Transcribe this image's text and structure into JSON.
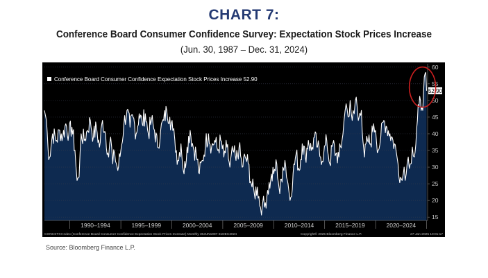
{
  "header": {
    "chart_label": "CHART 7:",
    "title": "Conference Board Consumer Confidence Survey: Expectation Stock Prices Increase",
    "subtitle": "(Jun. 30, 1987 – Dec. 31, 2024)"
  },
  "footer": {
    "source": "Source: Bloomberg Finance L.P."
  },
  "chart_data": {
    "type": "area",
    "legend_label": "Conference Board Consumer Confidence Expectation Stock Prices Increase",
    "last_value_label": "52.90",
    "legend_position": "top-left",
    "y_axis_side": "right",
    "ylim": [
      14,
      61
    ],
    "yticks": [
      15,
      20,
      25,
      30,
      35,
      40,
      45,
      50,
      55,
      60
    ],
    "xlim": [
      1987.5,
      2025.1
    ],
    "x_tick_labels": [
      {
        "label": "1990–1994",
        "center": 1992.5
      },
      {
        "label": "1995–1999",
        "center": 1997.5
      },
      {
        "label": "2000–2004",
        "center": 2002.5
      },
      {
        "label": "2005–2009",
        "center": 2007.5
      },
      {
        "label": "2010–2014",
        "center": 2012.5
      },
      {
        "label": "2015–2019",
        "center": 2017.5
      },
      {
        "label": "2020–2024",
        "center": 2022.5
      }
    ],
    "x_separators": [
      1990,
      1995,
      2000,
      2005,
      2010,
      2015,
      2020,
      2025
    ],
    "footer_left": "CONCSTXI Index (Conference Board Consumer Confidence Expectation Stock Prices Increase) Monthly 30JUN1987-31DEC2024",
    "footer_right": "Copyright© 2025 Bloomberg Finance L.P.",
    "footer_timestamp": "27-Jan-2025 10:01:17",
    "highlight": {
      "description": "red circle",
      "center_x": 2024.6,
      "center_y": 54,
      "color": "#cc1f1f"
    },
    "series_color": "#ffffff",
    "fill_color": "#0e2a50",
    "anchors": [
      [
        1987.5,
        47
      ],
      [
        1987.7,
        44
      ],
      [
        1987.85,
        36
      ],
      [
        1988.0,
        33
      ],
      [
        1988.3,
        40
      ],
      [
        1988.7,
        38
      ],
      [
        1989.0,
        41
      ],
      [
        1989.3,
        39
      ],
      [
        1989.6,
        43
      ],
      [
        1989.9,
        40
      ],
      [
        1990.2,
        42
      ],
      [
        1990.5,
        35
      ],
      [
        1990.7,
        26
      ],
      [
        1990.9,
        27
      ],
      [
        1991.1,
        40
      ],
      [
        1991.4,
        38
      ],
      [
        1991.7,
        41
      ],
      [
        1992.0,
        44
      ],
      [
        1992.3,
        39
      ],
      [
        1992.6,
        42
      ],
      [
        1992.9,
        36
      ],
      [
        1993.2,
        44
      ],
      [
        1993.5,
        40
      ],
      [
        1993.8,
        33
      ],
      [
        1994.0,
        39
      ],
      [
        1994.2,
        31
      ],
      [
        1994.4,
        34
      ],
      [
        1994.7,
        29
      ],
      [
        1995.0,
        35
      ],
      [
        1995.3,
        43
      ],
      [
        1995.6,
        47
      ],
      [
        1995.9,
        42
      ],
      [
        1996.2,
        45
      ],
      [
        1996.5,
        40
      ],
      [
        1996.8,
        46
      ],
      [
        1997.1,
        43
      ],
      [
        1997.4,
        46
      ],
      [
        1997.7,
        40
      ],
      [
        1998.0,
        44
      ],
      [
        1998.3,
        41
      ],
      [
        1998.6,
        36
      ],
      [
        1998.9,
        41
      ],
      [
        1999.2,
        44
      ],
      [
        1999.5,
        47
      ],
      [
        1999.8,
        45
      ],
      [
        2000.1,
        41
      ],
      [
        2000.3,
        38
      ],
      [
        2000.6,
        32
      ],
      [
        2000.9,
        37
      ],
      [
        2001.2,
        28
      ],
      [
        2001.5,
        36
      ],
      [
        2001.8,
        41
      ],
      [
        2002.1,
        36
      ],
      [
        2002.4,
        34
      ],
      [
        2002.7,
        28
      ],
      [
        2003.0,
        32
      ],
      [
        2003.3,
        37
      ],
      [
        2003.6,
        40
      ],
      [
        2003.9,
        36
      ],
      [
        2004.2,
        38
      ],
      [
        2004.5,
        35
      ],
      [
        2004.8,
        38
      ],
      [
        2005.1,
        33
      ],
      [
        2005.4,
        36
      ],
      [
        2005.7,
        30
      ],
      [
        2006.0,
        35
      ],
      [
        2006.3,
        32
      ],
      [
        2006.6,
        36
      ],
      [
        2006.9,
        30
      ],
      [
        2007.2,
        33
      ],
      [
        2007.5,
        31
      ],
      [
        2007.8,
        25
      ],
      [
        2008.1,
        22
      ],
      [
        2008.4,
        24
      ],
      [
        2008.7,
        18
      ],
      [
        2008.9,
        19
      ],
      [
        2009.1,
        18
      ],
      [
        2009.4,
        23
      ],
      [
        2009.7,
        26
      ],
      [
        2010.0,
        28
      ],
      [
        2010.3,
        31
      ],
      [
        2010.6,
        22
      ],
      [
        2010.9,
        30
      ],
      [
        2011.1,
        32
      ],
      [
        2011.4,
        25
      ],
      [
        2011.6,
        20
      ],
      [
        2011.9,
        28
      ],
      [
        2012.2,
        34
      ],
      [
        2012.5,
        29
      ],
      [
        2012.8,
        37
      ],
      [
        2013.1,
        33
      ],
      [
        2013.4,
        38
      ],
      [
        2013.7,
        35
      ],
      [
        2014.0,
        39
      ],
      [
        2014.3,
        36
      ],
      [
        2014.6,
        33
      ],
      [
        2014.9,
        34
      ],
      [
        2015.2,
        38
      ],
      [
        2015.5,
        31
      ],
      [
        2015.8,
        37
      ],
      [
        2016.1,
        34
      ],
      [
        2016.4,
        33
      ],
      [
        2016.7,
        38
      ],
      [
        2016.9,
        44
      ],
      [
        2017.1,
        49
      ],
      [
        2017.3,
        45
      ],
      [
        2017.5,
        50
      ],
      [
        2017.7,
        44
      ],
      [
        2017.9,
        46
      ],
      [
        2018.1,
        51
      ],
      [
        2018.3,
        44
      ],
      [
        2018.6,
        47
      ],
      [
        2018.9,
        33
      ],
      [
        2019.2,
        38
      ],
      [
        2019.5,
        37
      ],
      [
        2019.8,
        43
      ],
      [
        2020.0,
        41
      ],
      [
        2020.25,
        35
      ],
      [
        2020.5,
        39
      ],
      [
        2020.8,
        44
      ],
      [
        2021.1,
        42
      ],
      [
        2021.4,
        40
      ],
      [
        2021.7,
        38
      ],
      [
        2022.0,
        35
      ],
      [
        2022.2,
        31
      ],
      [
        2022.45,
        27
      ],
      [
        2022.6,
        26
      ],
      [
        2022.8,
        30
      ],
      [
        2023.0,
        28
      ],
      [
        2023.2,
        33
      ],
      [
        2023.4,
        31
      ],
      [
        2023.6,
        36
      ],
      [
        2023.8,
        33
      ],
      [
        2023.95,
        37
      ],
      [
        2024.1,
        44
      ],
      [
        2024.25,
        48
      ],
      [
        2024.4,
        50
      ],
      [
        2024.55,
        48
      ],
      [
        2024.7,
        52
      ],
      [
        2024.85,
        58
      ],
      [
        2025.0,
        52.9
      ]
    ]
  }
}
